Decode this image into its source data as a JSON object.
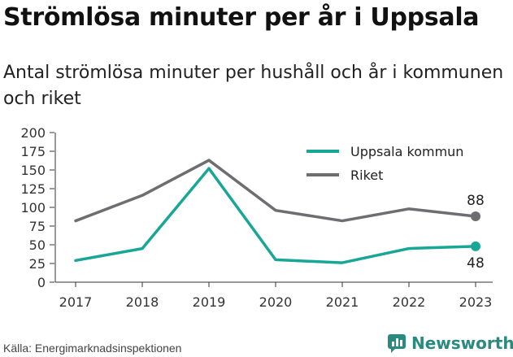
{
  "title": "Strömlösa minuter per år i Uppsala",
  "subtitle": "Antal strömlösa minuter per hushåll och år i kommunen och riket",
  "source": "Källa: Energimarknadsinspektionen",
  "brand": "Newsworthy",
  "colors": {
    "uppsala": "#18a697",
    "riket": "#6e6d72",
    "brand": "#2a8a7f"
  },
  "chart_data": {
    "type": "line",
    "x": [
      "2017",
      "2018",
      "2019",
      "2020",
      "2021",
      "2022",
      "2023"
    ],
    "ylim": [
      0,
      200
    ],
    "yticks": [
      0,
      25,
      50,
      75,
      100,
      125,
      150,
      175,
      200
    ],
    "grid": false,
    "legend_position": "top-right",
    "series": [
      {
        "name": "Uppsala kommun",
        "values": [
          29,
          45,
          152,
          30,
          26,
          45,
          48
        ],
        "end_label": "48",
        "color": "#18a697"
      },
      {
        "name": "Riket",
        "values": [
          82,
          116,
          163,
          96,
          82,
          98,
          88
        ],
        "end_label": "88",
        "color": "#6e6d72"
      }
    ]
  }
}
